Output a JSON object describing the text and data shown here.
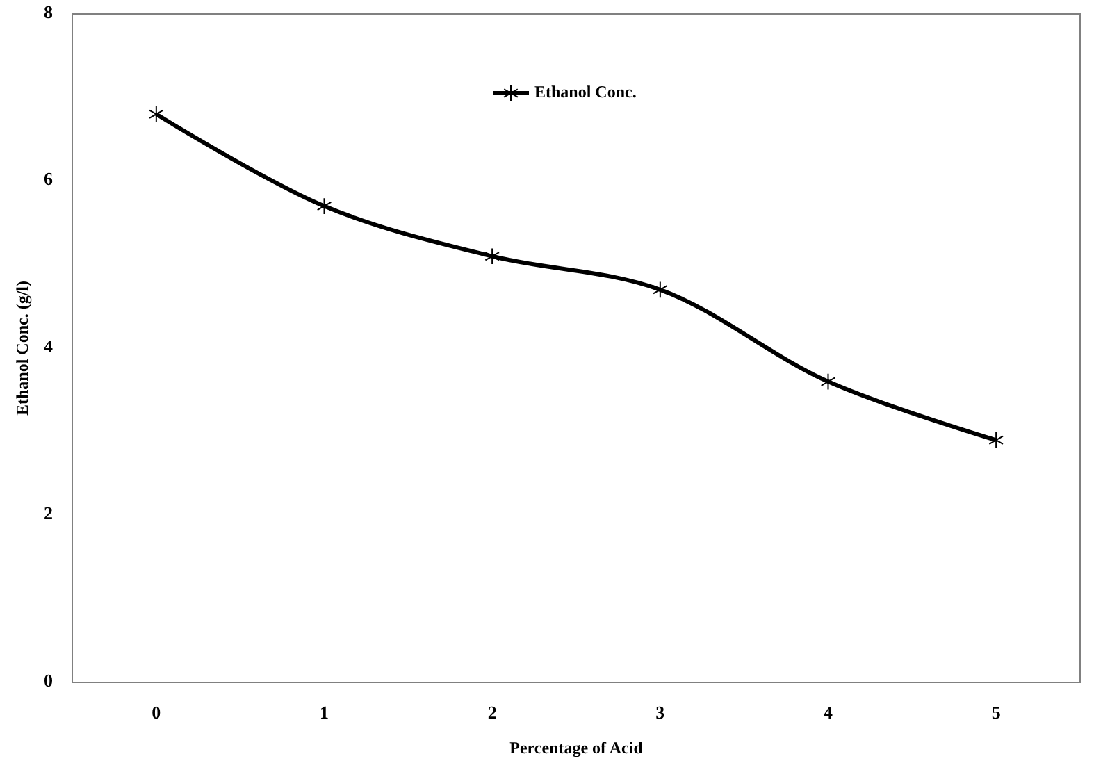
{
  "chart_data": {
    "type": "line",
    "xlabel": "Percentage of Acid",
    "ylabel": "Ethanol Conc. (g/l)",
    "x": [
      0,
      1,
      2,
      3,
      4,
      5
    ],
    "series": [
      {
        "name": "Ethanol Conc.",
        "color": "#000000",
        "values": [
          6.8,
          5.7,
          5.1,
          4.7,
          3.6,
          2.9
        ]
      }
    ],
    "xlim": [
      -0.5,
      5.5
    ],
    "xticks": [
      0,
      1,
      2,
      3,
      4,
      5
    ],
    "ylim": [
      0,
      8
    ],
    "yticks": [
      0,
      2,
      4,
      6,
      8
    ],
    "grid": false,
    "legend": "top",
    "marker": "cross",
    "line_style": "solid"
  }
}
